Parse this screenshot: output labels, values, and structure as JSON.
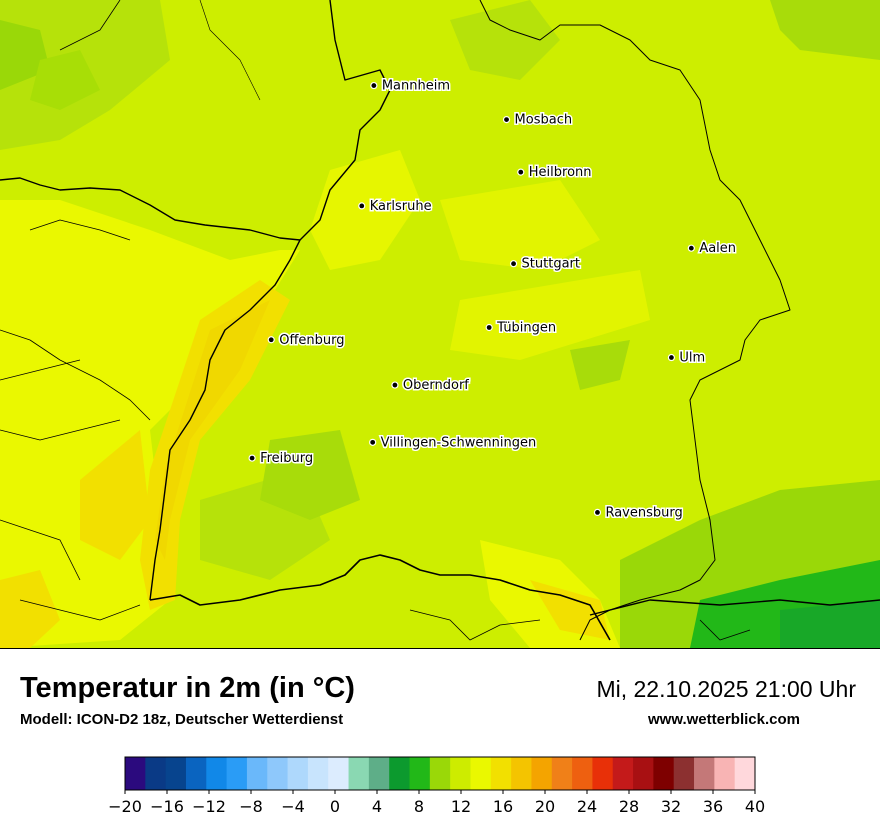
{
  "title": "Temperatur in 2m (in °C)",
  "model": "Modell: ICON-D2 18z, Deutscher Wetterdienst",
  "datetime": "Mi, 22.10.2025 21:00 Uhr",
  "website": "www.wetterblick.com",
  "cities": [
    {
      "name": "Mannheim",
      "lon": 8.466,
      "lat": 49.488
    },
    {
      "name": "Mosbach",
      "lon": 9.146,
      "lat": 49.352
    },
    {
      "name": "Heilbronn",
      "lon": 9.219,
      "lat": 49.142
    },
    {
      "name": "Karlsruhe",
      "lon": 8.404,
      "lat": 49.007
    },
    {
      "name": "Aalen",
      "lon": 10.093,
      "lat": 48.838
    },
    {
      "name": "Stuttgart",
      "lon": 9.182,
      "lat": 48.776
    },
    {
      "name": "Tübingen",
      "lon": 9.057,
      "lat": 48.521
    },
    {
      "name": "Offenburg",
      "lon": 7.94,
      "lat": 48.472
    },
    {
      "name": "Ulm",
      "lon": 9.991,
      "lat": 48.401
    },
    {
      "name": "Oberndorf",
      "lon": 8.574,
      "lat": 48.291
    },
    {
      "name": "Villingen-Schwenningen",
      "lon": 8.46,
      "lat": 48.062
    },
    {
      "name": "Freiburg",
      "lon": 7.842,
      "lat": 47.999
    },
    {
      "name": "Ravensburg",
      "lon": 9.612,
      "lat": 47.782
    }
  ],
  "legend": {
    "unit": "°C",
    "colors": [
      "#2b0a7e",
      "#0a3a86",
      "#07448e",
      "#0a64c0",
      "#1188e8",
      "#2a9cf6",
      "#6ab8fa",
      "#8ec8fb",
      "#aed8fc",
      "#c8e4fd",
      "#dcecfe",
      "#8ad8b2",
      "#5eae88",
      "#0c9a2e",
      "#22b818",
      "#9ad808",
      "#cdec00",
      "#eaf800",
      "#f2e000",
      "#f4c400",
      "#f4a400",
      "#f08018",
      "#ee6010",
      "#e83008",
      "#c41a1a",
      "#a81012",
      "#7e0000",
      "#8c3030",
      "#c47878",
      "#f8b4b4",
      "#ffd8dc"
    ],
    "ticks": [
      "−20",
      "−16",
      "−12",
      "−8",
      "−4",
      "0",
      "4",
      "8",
      "12",
      "16",
      "20",
      "24",
      "28",
      "32",
      "36",
      "40"
    ]
  }
}
